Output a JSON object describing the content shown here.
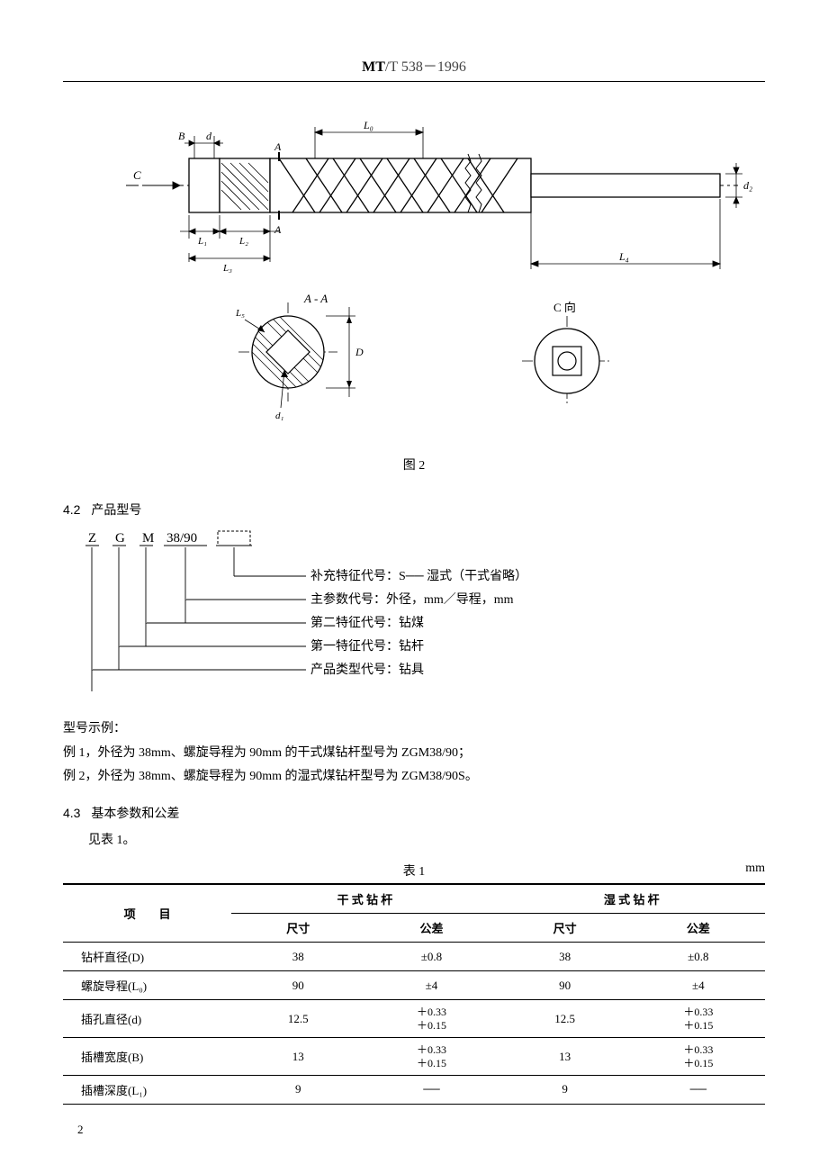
{
  "header": {
    "code_bold": "MT",
    "code_light": "/T 538－1996"
  },
  "figure2": {
    "caption": "图 2",
    "labels": {
      "L0": "L₀",
      "L1": "L₁",
      "L2": "L₂",
      "L3": "L₃",
      "L4": "L₄",
      "L5": "L₅",
      "d": "d",
      "d1": "d₁",
      "d2": "d₂",
      "B": "B",
      "D": "D",
      "C": "C",
      "section_AA": "A - A",
      "view_C": "C 向",
      "A1": "A",
      "A2": "A"
    },
    "colors": {
      "line": "#000000",
      "hatch": "#000000"
    }
  },
  "section_4_2": {
    "num": "4.2",
    "title": "产品型号",
    "code_parts": [
      "Z",
      "G",
      "M",
      "38/90",
      ""
    ],
    "dashed_box": true,
    "explanations": [
      "补充特征代号：S── 湿式（干式省略）",
      "主参数代号：外径，mm／导程，mm",
      "第二特征代号：钻煤",
      "第一特征代号：钻杆",
      "产品类型代号：钻具"
    ],
    "example_header": "型号示例：",
    "examples": [
      "例 1，外径为 38mm、螺旋导程为 90mm 的干式煤钻杆型号为 ZGM38/90；",
      "例 2，外径为 38mm、螺旋导程为 90mm 的湿式煤钻杆型号为 ZGM38/90S。"
    ]
  },
  "section_4_3": {
    "num": "4.3",
    "title": "基本参数和公差",
    "note": "见表 1。"
  },
  "table1": {
    "caption": "表 1",
    "unit": "mm",
    "col_item": "项　　目",
    "group_dry": "干 式 钻 杆",
    "group_wet": "湿 式 钻 杆",
    "col_size": "尺寸",
    "col_tol": "公差",
    "rows": [
      {
        "name": "钻杆直径(D)",
        "dry_size": "38",
        "dry_tol": "±0.8",
        "wet_size": "38",
        "wet_tol": "±0.8"
      },
      {
        "name": "螺旋导程(L₀)",
        "dry_size": "90",
        "dry_tol": "±4",
        "wet_size": "90",
        "wet_tol": "±4"
      },
      {
        "name": "插孔直径(d)",
        "dry_size": "12.5",
        "dry_tol_upper": "＋0.33",
        "dry_tol_lower": "＋0.15",
        "wet_size": "12.5",
        "wet_tol_upper": "＋0.33",
        "wet_tol_lower": "＋0.15"
      },
      {
        "name": "插槽宽度(B)",
        "dry_size": "13",
        "dry_tol_upper": "＋0.33",
        "dry_tol_lower": "＋0.15",
        "wet_size": "13",
        "wet_tol_upper": "＋0.33",
        "wet_tol_lower": "＋0.15"
      },
      {
        "name": "插槽深度(L₁)",
        "dry_size": "9",
        "dry_tol": "──",
        "wet_size": "9",
        "wet_tol": "──"
      }
    ],
    "column_widths": [
      "24%",
      "19%",
      "19%",
      "19%",
      "19%"
    ]
  },
  "page_number": "2"
}
